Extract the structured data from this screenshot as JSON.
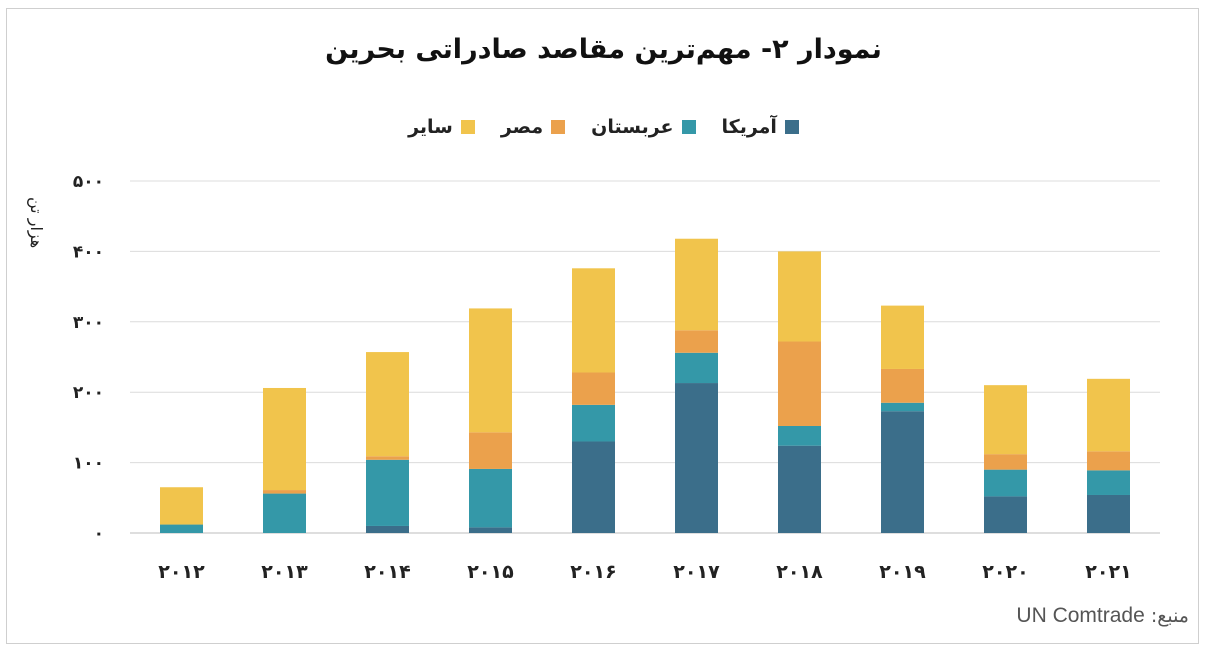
{
  "title": "نمودار ۲- مهم‌ترین مقاصد صادراتی بحرین",
  "source_label": "منبع:",
  "source_value": "UN Comtrade",
  "chart_data": {
    "type": "bar",
    "stacked": true,
    "title": "نمودار ۲- مهم‌ترین مقاصد صادراتی بحرین",
    "ylabel": "هزار تن",
    "xlabel": "",
    "ylim": [
      0,
      500
    ],
    "yticks": [
      0,
      100,
      200,
      300,
      400,
      500
    ],
    "ytick_labels": [
      "۰",
      "۱۰۰",
      "۲۰۰",
      "۳۰۰",
      "۴۰۰",
      "۵۰۰"
    ],
    "grid": true,
    "legend_position": "top-center",
    "categories": [
      "۲۰۱۲",
      "۲۰۱۳",
      "۲۰۱۴",
      "۲۰۱۵",
      "۲۰۱۶",
      "۲۰۱۷",
      "۲۰۱۸",
      "۲۰۱۹",
      "۲۰۲۰",
      "۲۰۲۱"
    ],
    "series": [
      {
        "name": "آمریکا",
        "color": "#3b6e8a",
        "values": [
          0,
          0,
          10,
          8,
          130,
          213,
          124,
          173,
          52,
          54
        ]
      },
      {
        "name": "عربستان",
        "color": "#3498a8",
        "values": [
          12,
          56,
          94,
          83,
          52,
          43,
          28,
          12,
          38,
          35
        ]
      },
      {
        "name": "مصر",
        "color": "#eba14c",
        "values": [
          0,
          5,
          5,
          52,
          46,
          32,
          120,
          48,
          22,
          27
        ]
      },
      {
        "name": "سایر",
        "color": "#f1c44c",
        "values": [
          53,
          145,
          148,
          176,
          148,
          130,
          128,
          90,
          98,
          103
        ]
      }
    ]
  }
}
